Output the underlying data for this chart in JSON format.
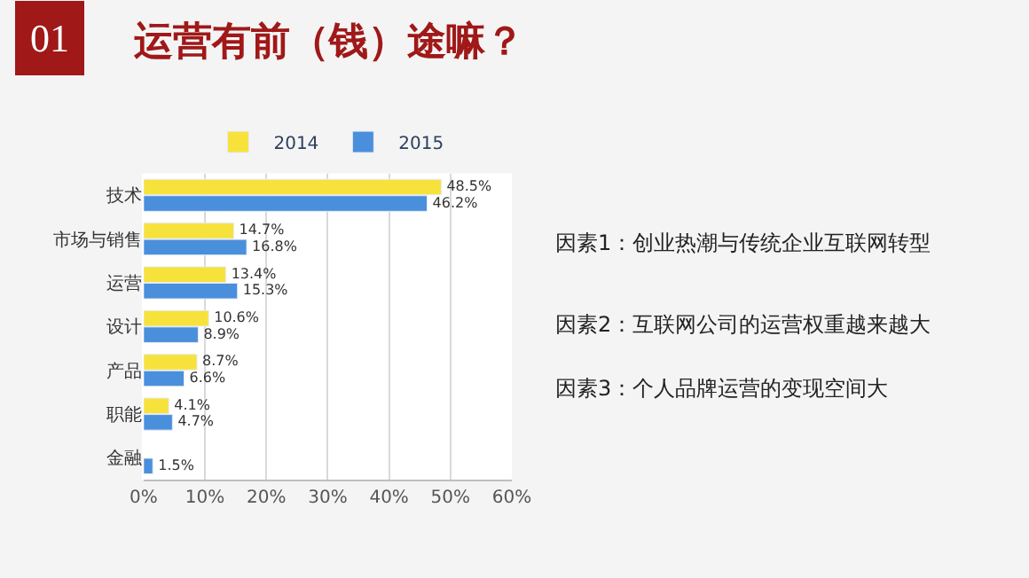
{
  "chart_data": {
    "type": "bar",
    "orientation": "horizontal",
    "title": "运营有前（钱）途嘛？",
    "categories": [
      "技术",
      "市场与销售",
      "运营",
      "设计",
      "产品",
      "职能",
      "金融"
    ],
    "series": [
      {
        "name": "2014",
        "color": "#f7e23c",
        "values": [
          48.5,
          14.7,
          13.4,
          10.6,
          8.7,
          4.1,
          null
        ],
        "value_labels": [
          "48.5%",
          "14.7%",
          "13.4%",
          "10.6%",
          "8.7%",
          "4.1%",
          null
        ]
      },
      {
        "name": "2015",
        "color": "#4a8fdc",
        "values": [
          46.2,
          16.8,
          15.3,
          8.9,
          6.6,
          4.7,
          1.5
        ],
        "value_labels": [
          "46.2%",
          "16.8%",
          "15.3%",
          "8.9%",
          "6.6%",
          "4.7%",
          "1.5%"
        ]
      }
    ],
    "xlim": [
      0,
      60
    ],
    "xticks": [
      {
        "value": 0,
        "label": "0%"
      },
      {
        "value": 10,
        "label": "10%"
      },
      {
        "value": 20,
        "label": "20%"
      },
      {
        "value": 30,
        "label": "30%"
      },
      {
        "value": 40,
        "label": "40%"
      },
      {
        "value": 50,
        "label": "50%"
      },
      {
        "value": 60,
        "label": "60%"
      }
    ],
    "grid": "x",
    "legend": "top",
    "annotations": [
      "01",
      "因素1：创业热潮与传统企业互联网转型",
      "因素2：互联网公司的运营权重越来越大",
      "因素3：个人品牌运营的变现空间大"
    ]
  }
}
